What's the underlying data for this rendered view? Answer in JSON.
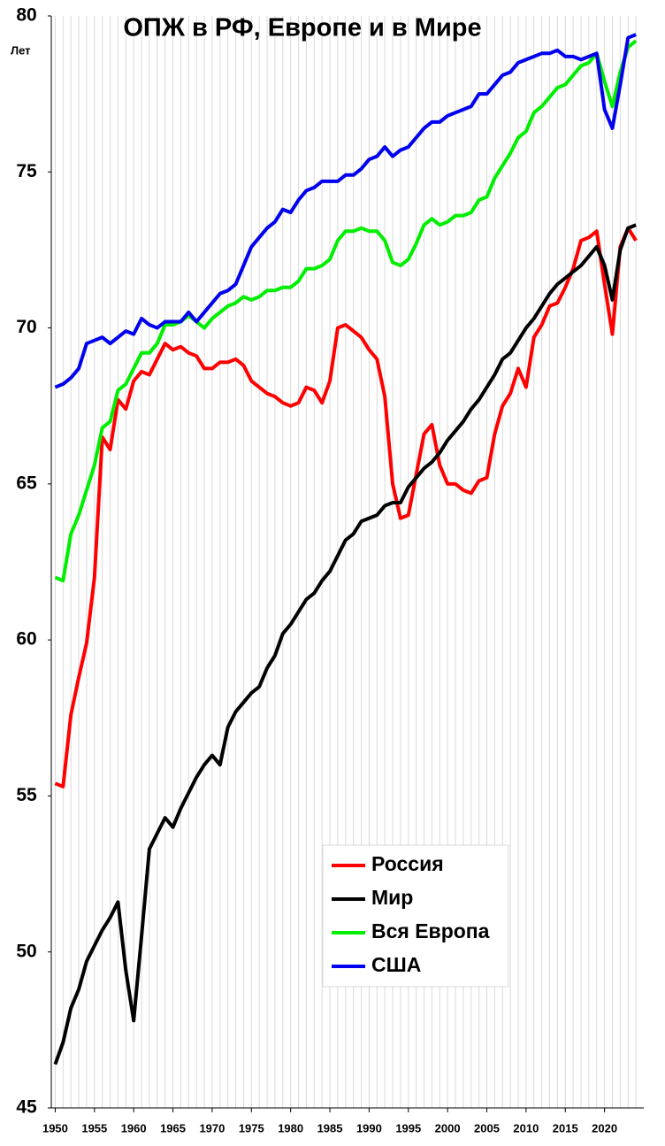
{
  "chart_data": {
    "type": "line",
    "title": "ОПЖ в РФ, Европе и в Мире",
    "y_label": "Лет",
    "x": [
      1950,
      1951,
      1952,
      1953,
      1954,
      1955,
      1956,
      1957,
      1958,
      1959,
      1960,
      1961,
      1962,
      1963,
      1964,
      1965,
      1966,
      1967,
      1968,
      1969,
      1970,
      1971,
      1972,
      1973,
      1974,
      1975,
      1976,
      1977,
      1978,
      1979,
      1980,
      1981,
      1982,
      1983,
      1984,
      1985,
      1986,
      1987,
      1988,
      1989,
      1990,
      1991,
      1992,
      1993,
      1994,
      1995,
      1996,
      1997,
      1998,
      1999,
      2000,
      2001,
      2002,
      2003,
      2004,
      2005,
      2006,
      2007,
      2008,
      2009,
      2010,
      2011,
      2012,
      2013,
      2014,
      2015,
      2016,
      2017,
      2018,
      2019,
      2020,
      2021,
      2022,
      2023,
      2024
    ],
    "series": [
      {
        "name": "Россия",
        "color": "#ff0000",
        "values": [
          55.4,
          55.3,
          57.6,
          58.8,
          59.9,
          62.0,
          66.5,
          66.1,
          67.7,
          67.4,
          68.3,
          68.6,
          68.5,
          69.0,
          69.5,
          69.3,
          69.4,
          69.2,
          69.1,
          68.7,
          68.7,
          68.9,
          68.9,
          69.0,
          68.8,
          68.3,
          68.1,
          67.9,
          67.8,
          67.6,
          67.5,
          67.6,
          68.1,
          68.0,
          67.6,
          68.3,
          70.0,
          70.1,
          69.9,
          69.7,
          69.3,
          69.0,
          67.8,
          65.0,
          63.9,
          64.0,
          65.3,
          66.6,
          66.9,
          65.6,
          65.0,
          65.0,
          64.8,
          64.7,
          65.1,
          65.2,
          66.6,
          67.5,
          67.9,
          68.7,
          68.1,
          69.7,
          70.1,
          70.7,
          70.8,
          71.3,
          71.9,
          72.8,
          72.9,
          73.1,
          71.4,
          69.8,
          72.6,
          73.2,
          72.8
        ]
      },
      {
        "name": "Мир",
        "color": "#000000",
        "values": [
          46.4,
          47.1,
          48.2,
          48.8,
          49.7,
          50.2,
          50.7,
          51.1,
          51.6,
          49.4,
          47.8,
          50.5,
          53.3,
          53.8,
          54.3,
          54.0,
          54.6,
          55.1,
          55.6,
          56.0,
          56.3,
          56.0,
          57.2,
          57.7,
          58.0,
          58.3,
          58.5,
          59.1,
          59.5,
          60.2,
          60.5,
          60.9,
          61.3,
          61.5,
          61.9,
          62.2,
          62.7,
          63.2,
          63.4,
          63.8,
          63.9,
          64.0,
          64.3,
          64.4,
          64.4,
          64.9,
          65.2,
          65.5,
          65.7,
          66.0,
          66.4,
          66.7,
          67.0,
          67.4,
          67.7,
          68.1,
          68.5,
          69.0,
          69.2,
          69.6,
          70.0,
          70.3,
          70.7,
          71.1,
          71.4,
          71.6,
          71.8,
          72.0,
          72.3,
          72.6,
          72.0,
          70.9,
          72.5,
          73.2,
          73.3
        ]
      },
      {
        "name": "Вся Европа",
        "color": "#00ee00",
        "values": [
          62.0,
          61.9,
          63.4,
          64.0,
          64.8,
          65.6,
          66.8,
          67.0,
          68.0,
          68.2,
          68.7,
          69.2,
          69.2,
          69.5,
          70.1,
          70.1,
          70.2,
          70.4,
          70.2,
          70.0,
          70.3,
          70.5,
          70.7,
          70.8,
          71.0,
          70.9,
          71.0,
          71.2,
          71.2,
          71.3,
          71.3,
          71.5,
          71.9,
          71.9,
          72.0,
          72.2,
          72.8,
          73.1,
          73.1,
          73.2,
          73.1,
          73.1,
          72.8,
          72.1,
          72.0,
          72.2,
          72.7,
          73.3,
          73.5,
          73.3,
          73.4,
          73.6,
          73.6,
          73.7,
          74.1,
          74.2,
          74.8,
          75.2,
          75.6,
          76.1,
          76.3,
          76.9,
          77.1,
          77.4,
          77.7,
          77.8,
          78.1,
          78.4,
          78.5,
          78.8,
          77.9,
          77.1,
          78.2,
          79.0,
          79.2
        ]
      },
      {
        "name": "США",
        "color": "#0000ee",
        "values": [
          68.1,
          68.2,
          68.4,
          68.7,
          69.5,
          69.6,
          69.7,
          69.5,
          69.7,
          69.9,
          69.8,
          70.3,
          70.1,
          70.0,
          70.2,
          70.2,
          70.2,
          70.5,
          70.2,
          70.5,
          70.8,
          71.1,
          71.2,
          71.4,
          72.0,
          72.6,
          72.9,
          73.2,
          73.4,
          73.8,
          73.7,
          74.1,
          74.4,
          74.5,
          74.7,
          74.7,
          74.7,
          74.9,
          74.9,
          75.1,
          75.4,
          75.5,
          75.8,
          75.5,
          75.7,
          75.8,
          76.1,
          76.4,
          76.6,
          76.6,
          76.8,
          76.9,
          77.0,
          77.1,
          77.5,
          77.5,
          77.8,
          78.1,
          78.2,
          78.5,
          78.6,
          78.7,
          78.8,
          78.8,
          78.9,
          78.7,
          78.7,
          78.6,
          78.7,
          78.8,
          77.0,
          76.4,
          77.8,
          79.3,
          79.4
        ]
      }
    ],
    "xlim": [
      1949.5,
      2025
    ],
    "xticks": [
      1950,
      1955,
      1960,
      1965,
      1970,
      1975,
      1980,
      1985,
      1990,
      1995,
      2000,
      2005,
      2010,
      2015,
      2020
    ],
    "ylim": [
      45,
      80
    ],
    "yticks": [
      45,
      50,
      55,
      60,
      65,
      70,
      75,
      80
    ],
    "grid": "x",
    "legend": "lower right"
  }
}
